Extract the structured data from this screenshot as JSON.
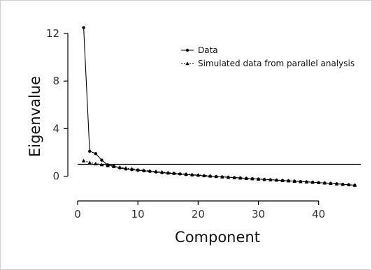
{
  "chart_data": {
    "type": "line",
    "title": "",
    "xlabel": "Component",
    "ylabel": "Eigenvalue",
    "xlim": [
      0,
      47
    ],
    "ylim": [
      -1.2,
      13
    ],
    "x_ticks": [
      0,
      10,
      20,
      30,
      40
    ],
    "y_ticks": [
      0,
      4,
      8,
      12
    ],
    "grid": false,
    "legend_position": "top-right",
    "reference_line": {
      "y": 1.0
    },
    "series": [
      {
        "name": "Data",
        "marker": "circle",
        "x": [
          1,
          2,
          3,
          4,
          5,
          6,
          7,
          8,
          9,
          10,
          11,
          12,
          13,
          14,
          15,
          16,
          17,
          18,
          19,
          20,
          21,
          22,
          23,
          24,
          25,
          26,
          27,
          28,
          29,
          30,
          31,
          32,
          33,
          34,
          35,
          36,
          37,
          38,
          39,
          40,
          41,
          42,
          43,
          44,
          45,
          46
        ],
        "values": [
          12.5,
          2.1,
          1.9,
          1.35,
          0.95,
          0.85,
          0.7,
          0.6,
          0.55,
          0.5,
          0.45,
          0.4,
          0.35,
          0.3,
          0.25,
          0.22,
          0.18,
          0.14,
          0.1,
          0.07,
          0.03,
          0.0,
          -0.03,
          -0.06,
          -0.09,
          -0.12,
          -0.15,
          -0.18,
          -0.21,
          -0.24,
          -0.27,
          -0.3,
          -0.33,
          -0.36,
          -0.39,
          -0.42,
          -0.45,
          -0.48,
          -0.51,
          -0.54,
          -0.57,
          -0.6,
          -0.64,
          -0.68,
          -0.72,
          -0.76
        ]
      },
      {
        "name": "Simulated data from parallel analysis",
        "marker": "triangle",
        "x": [
          1,
          2,
          3,
          4,
          5,
          6,
          7,
          8,
          9,
          10,
          11,
          12,
          13,
          14,
          15,
          16,
          17,
          18,
          19,
          20,
          21,
          22,
          23,
          24,
          25,
          26,
          27,
          28,
          29,
          30,
          31,
          32,
          33,
          34,
          35,
          36,
          37,
          38,
          39,
          40,
          41,
          42,
          43,
          44,
          45,
          46
        ],
        "values": [
          1.3,
          1.15,
          1.05,
          0.97,
          0.9,
          0.82,
          0.75,
          0.68,
          0.62,
          0.56,
          0.5,
          0.45,
          0.4,
          0.35,
          0.3,
          0.26,
          0.22,
          0.18,
          0.14,
          0.1,
          0.06,
          0.02,
          -0.02,
          -0.06,
          -0.09,
          -0.12,
          -0.15,
          -0.18,
          -0.21,
          -0.24,
          -0.27,
          -0.3,
          -0.33,
          -0.36,
          -0.39,
          -0.42,
          -0.45,
          -0.48,
          -0.51,
          -0.54,
          -0.57,
          -0.6,
          -0.64,
          -0.68,
          -0.72,
          -0.76
        ]
      }
    ],
    "colors": {
      "line": "#000000",
      "axis": "#000000",
      "frame": "#cfcfcf"
    }
  }
}
